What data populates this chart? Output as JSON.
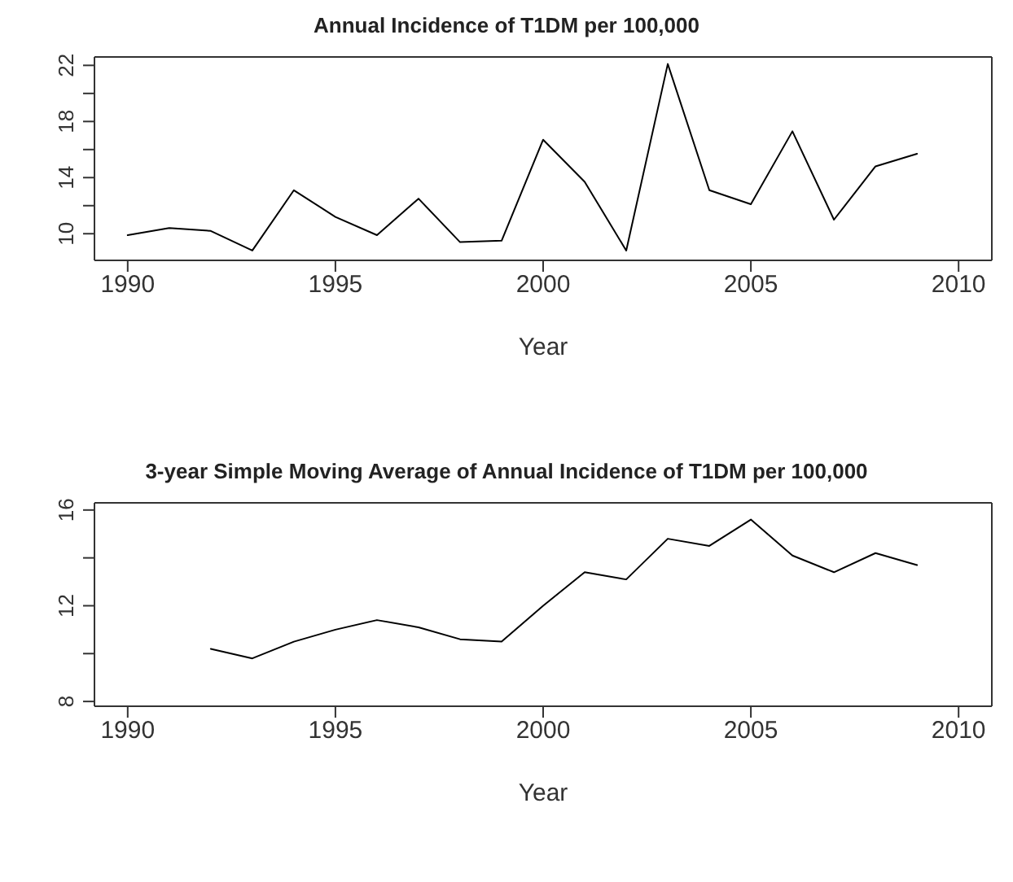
{
  "chart_data": [
    {
      "type": "line",
      "title": "Annual Incidence of T1DM per 100,000",
      "xlabel": "Year",
      "x": [
        1990,
        1991,
        1992,
        1993,
        1994,
        1995,
        1996,
        1997,
        1998,
        1999,
        2000,
        2001,
        2002,
        2003,
        2004,
        2005,
        2006,
        2007,
        2008,
        2009
      ],
      "series": [
        {
          "color": "#000000",
          "values": [
            9.9,
            10.4,
            10.2,
            8.8,
            13.1,
            11.2,
            9.9,
            12.5,
            9.4,
            9.5,
            16.7,
            13.7,
            8.8,
            22.1,
            13.1,
            12.1,
            17.3,
            11.0,
            14.8,
            15.7
          ]
        }
      ],
      "xlim": [
        1989.2,
        2010.8
      ],
      "xticks": [
        1990,
        1995,
        2000,
        2005,
        2010
      ],
      "ylim": [
        8.1,
        22.6
      ],
      "yticks": [
        10,
        {
          "value": 12,
          "label": null
        },
        14,
        {
          "value": 16,
          "label": null
        },
        18,
        {
          "value": 20,
          "label": null
        },
        22
      ],
      "grid": false,
      "legend": false,
      "marker": "none",
      "line_style": "solid"
    },
    {
      "type": "line",
      "title": "3-year Simple Moving Average of Annual Incidence of T1DM per 100,000",
      "xlabel": "Year",
      "x": [
        1992,
        1993,
        1994,
        1995,
        1996,
        1997,
        1998,
        1999,
        2000,
        2001,
        2002,
        2003,
        2004,
        2005,
        2006,
        2007,
        2008,
        2009
      ],
      "series": [
        {
          "color": "#000000",
          "values": [
            10.2,
            9.8,
            10.5,
            11.0,
            11.4,
            11.1,
            10.6,
            10.5,
            12.0,
            13.4,
            13.1,
            14.8,
            14.5,
            15.6,
            14.1,
            13.4,
            14.2,
            13.7
          ]
        }
      ],
      "xlim": [
        1989.2,
        2010.8
      ],
      "xticks": [
        1990,
        1995,
        2000,
        2005,
        2010
      ],
      "ylim": [
        7.8,
        16.3
      ],
      "yticks": [
        8,
        {
          "value": 10,
          "label": null
        },
        12,
        {
          "value": 14,
          "label": null
        },
        16
      ],
      "grid": false,
      "legend": false,
      "marker": "none",
      "line_style": "solid"
    }
  ]
}
